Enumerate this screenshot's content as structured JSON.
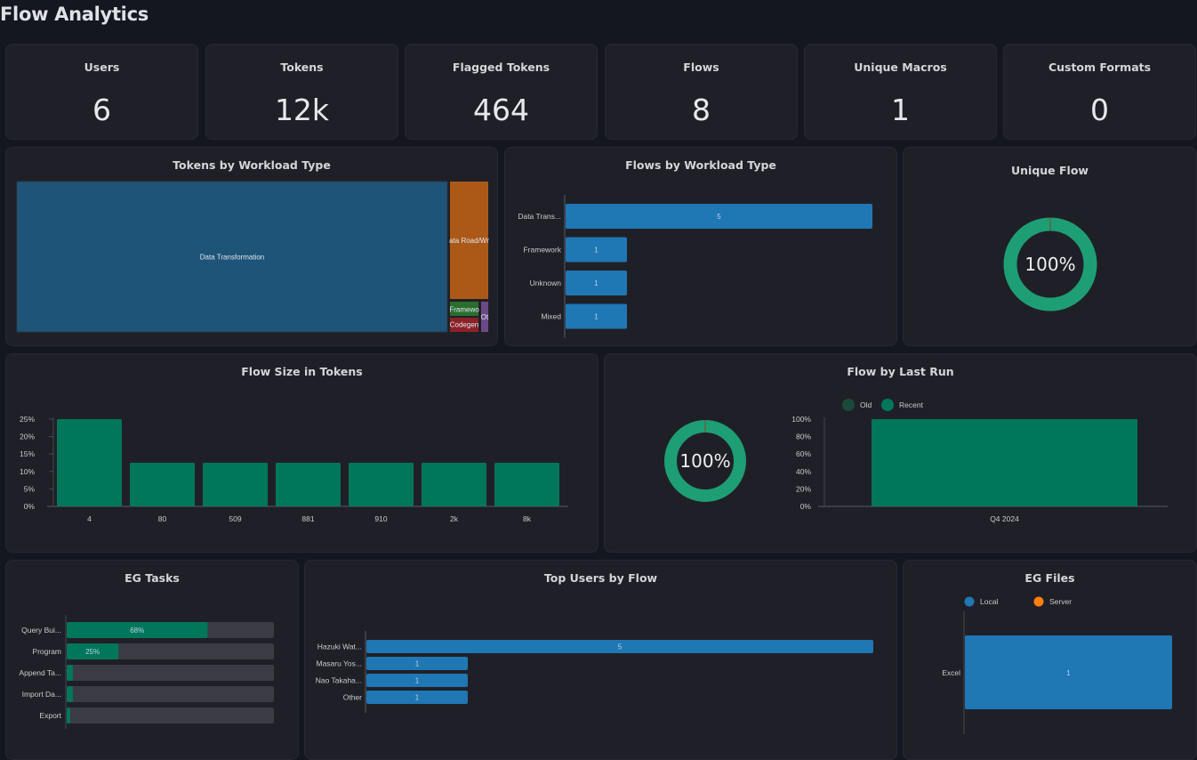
{
  "page": {
    "title": "Flow Analytics"
  },
  "kpis": [
    {
      "label": "Users",
      "value": "6"
    },
    {
      "label": "Tokens",
      "value": "12k"
    },
    {
      "label": "Flagged Tokens",
      "value": "464"
    },
    {
      "label": "Flows",
      "value": "8"
    },
    {
      "label": "Unique Macros",
      "value": "1"
    },
    {
      "label": "Custom Formats",
      "value": "0"
    }
  ],
  "colors": {
    "blue": "#1f77b4",
    "green": "#00775a",
    "donut_green": "#1e9e74",
    "track": "#3a3b43",
    "orange": "#ff7f0e"
  },
  "chart_data": [
    {
      "id": "tokens_by_workload",
      "type": "treemap",
      "title": "Tokens by Workload Type",
      "items": [
        {
          "label": "Data Transformation",
          "share": 0.884,
          "color": "#1f5479"
        },
        {
          "label": "Data Road/Wrangling",
          "share": 0.078,
          "color": "#ac5918"
        },
        {
          "label": "Framework",
          "share": 0.012,
          "color": "#2a6e2e"
        },
        {
          "label": "Codegen",
          "share": 0.012,
          "color": "#8c2227"
        },
        {
          "label": "Other",
          "share": 0.004,
          "color": "#6a4a86"
        }
      ],
      "display_labels": [
        "Data Transformation",
        "ata Road/Wr",
        "Framewo",
        "Codegen",
        "Ot"
      ]
    },
    {
      "id": "flows_by_workload",
      "type": "bar",
      "orientation": "horizontal",
      "title": "Flows by Workload Type",
      "categories": [
        "Data Trans...",
        "Framework",
        "Unknown",
        "Mixed"
      ],
      "values": [
        5,
        1,
        1,
        1
      ],
      "xlim": [
        0,
        5
      ]
    },
    {
      "id": "unique_flow",
      "type": "pie",
      "title": "Unique Flow",
      "center_label": "100%",
      "values": [
        100,
        0
      ]
    },
    {
      "id": "flow_size_in_tokens",
      "type": "bar",
      "title": "Flow Size in Tokens",
      "categories": [
        "4",
        "80",
        "509",
        "881",
        "910",
        "2k",
        "8k"
      ],
      "values": [
        25,
        12.5,
        12.5,
        12.5,
        12.5,
        12.5,
        12.5
      ],
      "yticks": [
        "0%",
        "5%",
        "10%",
        "15%",
        "20%",
        "25%"
      ],
      "ylim": [
        0,
        25
      ],
      "ylabel": "",
      "xlabel": ""
    },
    {
      "id": "flow_by_last_run_donut",
      "type": "pie",
      "title": "Flow by Last Run",
      "center_label": "100%",
      "values": [
        100,
        0
      ]
    },
    {
      "id": "flow_by_last_run_bar",
      "type": "bar",
      "stacked": true,
      "categories": [
        "Q4 2024"
      ],
      "series": [
        {
          "name": "Old",
          "values": [
            0
          ],
          "color": "#1a4a3a"
        },
        {
          "name": "Recent",
          "values": [
            100
          ],
          "color": "#00775a"
        }
      ],
      "yticks": [
        "0%",
        "20%",
        "40%",
        "60%",
        "80%",
        "100%"
      ],
      "ylim": [
        0,
        100
      ],
      "legend": "top-left"
    },
    {
      "id": "eg_tasks",
      "type": "bar",
      "orientation": "horizontal",
      "title": "EG Tasks",
      "categories": [
        "Query Bui...",
        "Program",
        "Append Ta...",
        "Import Da...",
        "Export"
      ],
      "values": [
        68,
        25,
        3,
        3,
        1
      ],
      "value_labels": [
        "68%",
        "25%",
        "",
        "",
        ""
      ],
      "xlim": [
        0,
        100
      ]
    },
    {
      "id": "top_users_by_flow",
      "type": "bar",
      "orientation": "horizontal",
      "title": "Top Users by Flow",
      "categories": [
        "Hazuki Wat...",
        "Masaru Yos...",
        "Nao Takaha...",
        "Other"
      ],
      "values": [
        5,
        1,
        1,
        1
      ],
      "xlim": [
        0,
        5
      ]
    },
    {
      "id": "eg_files",
      "type": "bar",
      "orientation": "horizontal",
      "stacked": true,
      "title": "EG Files",
      "categories": [
        "Excel"
      ],
      "series": [
        {
          "name": "Local",
          "values": [
            1
          ],
          "color": "#1f77b4"
        },
        {
          "name": "Server",
          "values": [
            0
          ],
          "color": "#ff7f0e"
        }
      ],
      "legend": "top"
    }
  ]
}
